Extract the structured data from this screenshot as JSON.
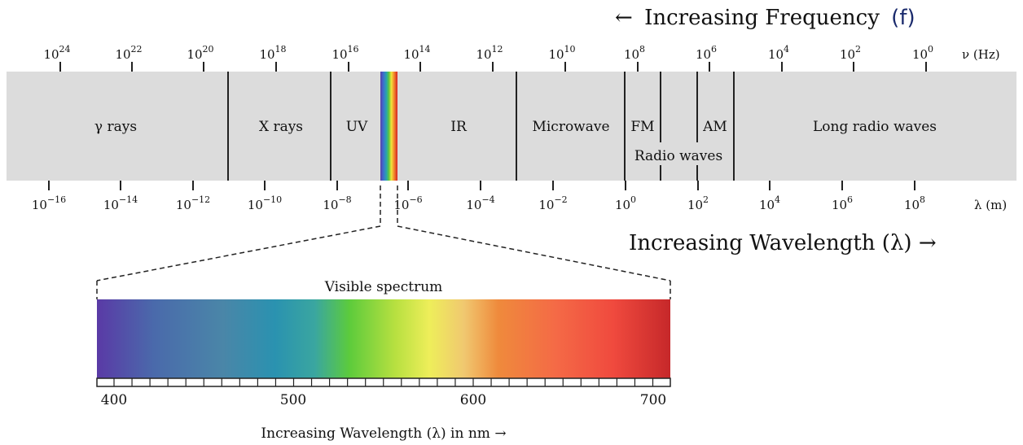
{
  "header": {
    "frequency_arrow": "←",
    "frequency_title": "Increasing Frequency",
    "frequency_symbol": "(f)",
    "frequency_symbol_color": "#1a2a6c",
    "frequency_unit": "ν (Hz)",
    "wavelength_title": "Increasing Wavelength (λ) →",
    "wavelength_unit": "λ (m)"
  },
  "frequency_ticks": [
    {
      "base": "10",
      "exp": "24"
    },
    {
      "base": "10",
      "exp": "22"
    },
    {
      "base": "10",
      "exp": "20"
    },
    {
      "base": "10",
      "exp": "18"
    },
    {
      "base": "10",
      "exp": "16"
    },
    {
      "base": "10",
      "exp": "14"
    },
    {
      "base": "10",
      "exp": "12"
    },
    {
      "base": "10",
      "exp": "10"
    },
    {
      "base": "10",
      "exp": "8"
    },
    {
      "base": "10",
      "exp": "6"
    },
    {
      "base": "10",
      "exp": "4"
    },
    {
      "base": "10",
      "exp": "2"
    },
    {
      "base": "10",
      "exp": "0"
    }
  ],
  "wavelength_ticks": [
    {
      "base": "10",
      "exp": "−16"
    },
    {
      "base": "10",
      "exp": "−14"
    },
    {
      "base": "10",
      "exp": "−12"
    },
    {
      "base": "10",
      "exp": "−10"
    },
    {
      "base": "10",
      "exp": "−8"
    },
    {
      "base": "10",
      "exp": "−6"
    },
    {
      "base": "10",
      "exp": "−4"
    },
    {
      "base": "10",
      "exp": "−2"
    },
    {
      "base": "10",
      "exp": "0"
    },
    {
      "base": "10",
      "exp": "2"
    },
    {
      "base": "10",
      "exp": "4"
    },
    {
      "base": "10",
      "exp": "6"
    },
    {
      "base": "10",
      "exp": "8"
    }
  ],
  "bands": {
    "gamma": "γ rays",
    "xray": "X rays",
    "uv": "UV",
    "ir": "IR",
    "microwave": "Microwave",
    "fm": "FM",
    "am": "AM",
    "radio": "Radio waves",
    "long_radio": "Long radio waves"
  },
  "visible": {
    "title": "Visible spectrum",
    "axis_labels": [
      "400",
      "500",
      "600",
      "700"
    ],
    "caption": "Increasing Wavelength (λ) in nm →"
  },
  "colors": {
    "band_fill": "#dcdcdc",
    "line": "#222222"
  }
}
